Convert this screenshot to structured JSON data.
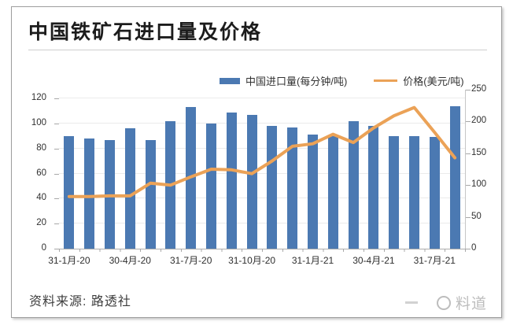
{
  "card": {
    "title": "中国铁矿石进口量及价格",
    "source": "资料来源: 路透社",
    "watermark": "料道"
  },
  "colors": {
    "bar": "#4b79b2",
    "line": "#eba257"
  },
  "chart_data": {
    "type": "bar",
    "combo": "bar+line",
    "title": "中国铁矿石进口量及价格",
    "categories": [
      "2020-01",
      "2020-02",
      "2020-03",
      "2020-04",
      "2020-05",
      "2020-06",
      "2020-07",
      "2020-08",
      "2020-09",
      "2020-10",
      "2020-11",
      "2020-12",
      "2021-01",
      "2021-02",
      "2021-03",
      "2021-04",
      "2021-05",
      "2021-06",
      "2021-07",
      "2021-08"
    ],
    "series": [
      {
        "name": "中国进口量(每分钟/吨)",
        "type": "bar",
        "axis": "left",
        "color": "#4b79b2",
        "values": [
          90,
          88,
          87,
          96,
          87,
          102,
          113,
          100,
          109,
          107,
          98,
          97,
          91,
          90,
          102,
          98,
          90,
          90,
          89,
          114
        ]
      },
      {
        "name": "价格(美元/吨)",
        "type": "line",
        "axis": "right",
        "color": "#eba257",
        "values": [
          82,
          82,
          83,
          83,
          103,
          100,
          113,
          125,
          124,
          118,
          138,
          161,
          165,
          180,
          167,
          190,
          209,
          222,
          183,
          143
        ]
      }
    ],
    "x_tick_labels": [
      "31-1月-20",
      "30-4月-20",
      "31-7月-20",
      "31-10月-20",
      "31-1月-21",
      "30-4月-21",
      "31-7月-21"
    ],
    "x_tick_every": 3,
    "left_axis": {
      "ticks": [
        0,
        20,
        40,
        60,
        80,
        100,
        120
      ],
      "lim": [
        0,
        127
      ]
    },
    "right_axis": {
      "ticks": [
        0,
        50,
        100,
        150,
        200,
        250
      ],
      "lim": [
        0,
        250
      ]
    },
    "grid": "horizontal",
    "legend_position": "top"
  }
}
